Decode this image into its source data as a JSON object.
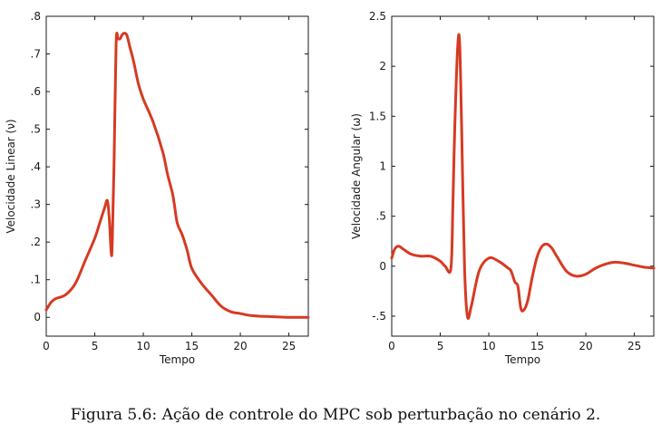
{
  "caption": "Figura 5.6: Ação de controle do MPC sob perturbação no cenário 2.",
  "line_color": "#d63a22",
  "chart_data": [
    {
      "type": "line",
      "title": "",
      "xlabel": "Tempo",
      "ylabel": "Velocidade Linear (ν)",
      "xlim": [
        0,
        27
      ],
      "ylim": [
        -0.05,
        0.8
      ],
      "xticks": [
        0,
        5,
        10,
        15,
        20,
        25
      ],
      "yticks": [
        0,
        0.1,
        0.2,
        0.3,
        0.4,
        0.5,
        0.6,
        0.7,
        0.8
      ],
      "grid": false,
      "series": [
        {
          "name": "ν",
          "x": [
            0,
            0.5,
            1,
            2,
            3,
            4,
            5,
            5.5,
            6,
            6.3,
            6.5,
            6.7,
            6.8,
            7.0,
            7.2,
            7.4,
            7.6,
            7.8,
            8.0,
            8.3,
            8.6,
            9,
            9.5,
            10,
            11,
            12,
            12.5,
            13,
            13.2,
            13.5,
            14,
            14.5,
            15,
            16,
            17,
            18,
            19,
            20,
            21,
            22,
            23,
            24,
            25,
            26,
            27
          ],
          "y": [
            0.02,
            0.04,
            0.05,
            0.06,
            0.09,
            0.15,
            0.21,
            0.25,
            0.29,
            0.31,
            0.26,
            0.17,
            0.2,
            0.43,
            0.73,
            0.74,
            0.74,
            0.75,
            0.755,
            0.75,
            0.72,
            0.68,
            0.62,
            0.58,
            0.52,
            0.44,
            0.38,
            0.33,
            0.3,
            0.25,
            0.22,
            0.18,
            0.13,
            0.09,
            0.06,
            0.03,
            0.015,
            0.01,
            0.005,
            0.003,
            0.002,
            0.001,
            0.0,
            0.0,
            0.0
          ]
        }
      ]
    },
    {
      "type": "line",
      "title": "",
      "xlabel": "Tempo",
      "ylabel": "Velocidade Angular (ω)",
      "xlim": [
        0,
        27
      ],
      "ylim": [
        -0.7,
        2.5
      ],
      "xticks": [
        0,
        5,
        10,
        15,
        20,
        25
      ],
      "yticks": [
        -0.5,
        0,
        0.5,
        1,
        1.5,
        2,
        2.5
      ],
      "grid": false,
      "series": [
        {
          "name": "ω",
          "x": [
            0,
            0.3,
            0.7,
            1.2,
            2,
            3,
            4,
            5,
            5.5,
            6.1,
            6.3,
            6.5,
            6.8,
            7.0,
            7.2,
            7.5,
            7.8,
            8.2,
            9,
            10,
            11,
            12,
            12.3,
            12.7,
            13,
            13.3,
            13.6,
            14,
            14.5,
            15,
            15.5,
            16,
            16.5,
            17,
            18,
            19,
            20,
            21,
            22,
            23,
            24,
            25,
            26,
            27
          ],
          "y": [
            0.08,
            0.17,
            0.2,
            0.17,
            0.12,
            0.1,
            0.1,
            0.05,
            0.0,
            -0.02,
            0.6,
            1.4,
            2.2,
            2.23,
            1.4,
            0.0,
            -0.5,
            -0.4,
            -0.05,
            0.08,
            0.05,
            -0.02,
            -0.05,
            -0.16,
            -0.2,
            -0.42,
            -0.44,
            -0.35,
            -0.1,
            0.1,
            0.2,
            0.22,
            0.18,
            0.1,
            -0.05,
            -0.1,
            -0.08,
            -0.02,
            0.02,
            0.04,
            0.03,
            0.01,
            -0.01,
            -0.02
          ]
        }
      ]
    }
  ]
}
